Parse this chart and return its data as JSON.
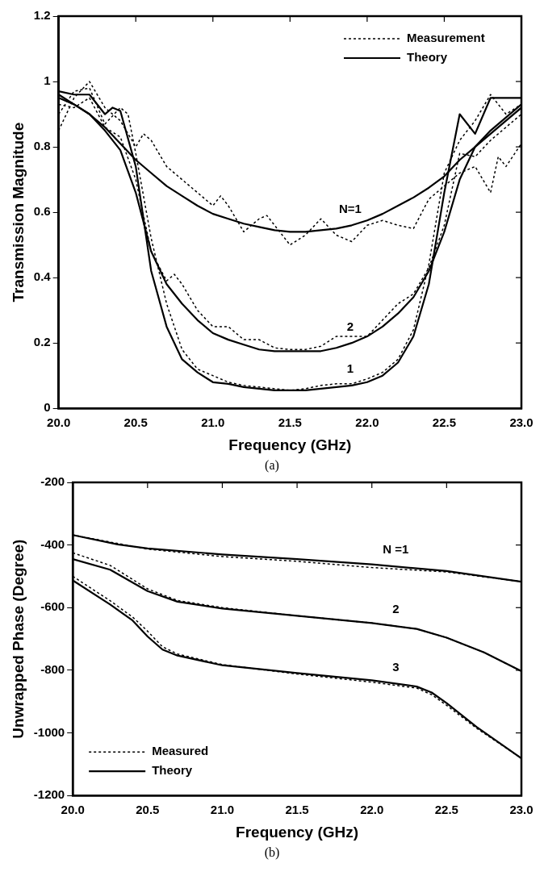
{
  "chart_data": [
    {
      "type": "line",
      "xlabel": "Frequency (GHz)",
      "ylabel": "Transmission Magnitude",
      "xlim": [
        20,
        23
      ],
      "ylim": [
        0,
        1.2
      ],
      "xticks": [
        {
          "value": 20,
          "label": "20.0"
        },
        {
          "value": 20.5,
          "label": "20.5"
        },
        {
          "value": 21,
          "label": "21.0"
        },
        {
          "value": 21.5,
          "label": "21.5"
        },
        {
          "value": 22,
          "label": "22.0"
        },
        {
          "value": 22.5,
          "label": "22.5"
        },
        {
          "value": 23,
          "label": "23.0"
        }
      ],
      "yticks": [
        0,
        0.2,
        0.4,
        0.6,
        0.8,
        1,
        1.2
      ],
      "grid": false,
      "legend": "top right",
      "marker": "none",
      "annotations": [
        "N=1",
        "2",
        "1",
        "(a)"
      ],
      "series": [
        {
          "name": "Measurement",
          "color": "#000000",
          "line_style": "dotted",
          "x": [
            20,
            20.1,
            20.2,
            20.3,
            20.4,
            20.5,
            20.55,
            20.6,
            20.7,
            20.8,
            20.9,
            21,
            21.05,
            21.1,
            21.2,
            21.3,
            21.35,
            21.4,
            21.5,
            21.6,
            21.7,
            21.8,
            21.9,
            22,
            22.1,
            22.2,
            22.3,
            22.4,
            22.5,
            22.6,
            22.7,
            22.8,
            22.85,
            22.9,
            23
          ],
          "values": [
            0.85,
            0.95,
            1.0,
            0.92,
            0.88,
            0.8,
            0.84,
            0.82,
            0.74,
            0.7,
            0.66,
            0.62,
            0.65,
            0.62,
            0.54,
            0.58,
            0.59,
            0.56,
            0.5,
            0.53,
            0.58,
            0.53,
            0.51,
            0.56,
            0.575,
            0.56,
            0.55,
            0.64,
            0.68,
            0.72,
            0.74,
            0.66,
            0.77,
            0.74,
            0.81
          ]
        },
        {
          "name": "Theory",
          "color": "#000000",
          "line_style": "solid",
          "x": [
            20,
            20.1,
            20.2,
            20.3,
            20.4,
            20.5,
            20.6,
            20.7,
            20.8,
            20.9,
            21,
            21.1,
            21.2,
            21.3,
            21.4,
            21.5,
            21.6,
            21.7,
            21.8,
            21.9,
            22,
            22.1,
            22.2,
            22.3,
            22.4,
            22.5,
            22.6,
            22.7,
            22.8,
            22.9,
            23
          ],
          "values": [
            0.95,
            0.93,
            0.9,
            0.86,
            0.81,
            0.76,
            0.72,
            0.68,
            0.65,
            0.62,
            0.595,
            0.58,
            0.565,
            0.555,
            0.545,
            0.54,
            0.54,
            0.545,
            0.55,
            0.56,
            0.575,
            0.595,
            0.62,
            0.645,
            0.675,
            0.71,
            0.76,
            0.8,
            0.84,
            0.88,
            0.92
          ]
        },
        {
          "color": "#000000",
          "line_style": "dotted",
          "x": [
            20,
            20.1,
            20.2,
            20.3,
            20.4,
            20.5,
            20.6,
            20.7,
            20.75,
            20.8,
            20.9,
            21,
            21.1,
            21.2,
            21.3,
            21.4,
            21.5,
            21.6,
            21.7,
            21.8,
            21.9,
            22,
            22.1,
            22.2,
            22.3,
            22.4,
            22.5,
            22.6,
            22.7,
            22.8,
            22.9,
            23
          ],
          "values": [
            0.93,
            0.92,
            0.95,
            0.86,
            0.83,
            0.7,
            0.48,
            0.39,
            0.41,
            0.38,
            0.3,
            0.25,
            0.25,
            0.21,
            0.21,
            0.185,
            0.18,
            0.18,
            0.19,
            0.22,
            0.22,
            0.22,
            0.27,
            0.32,
            0.35,
            0.43,
            0.56,
            0.78,
            0.77,
            0.82,
            0.86,
            0.9
          ]
        },
        {
          "color": "#000000",
          "line_style": "solid",
          "x": [
            20,
            20.1,
            20.2,
            20.3,
            20.4,
            20.5,
            20.6,
            20.7,
            20.8,
            20.9,
            21,
            21.1,
            21.2,
            21.3,
            21.4,
            21.5,
            21.6,
            21.7,
            21.8,
            21.9,
            22,
            22.1,
            22.2,
            22.3,
            22.4,
            22.5,
            22.6,
            22.7,
            22.8,
            22.9,
            23
          ],
          "values": [
            0.96,
            0.93,
            0.9,
            0.85,
            0.79,
            0.66,
            0.48,
            0.38,
            0.32,
            0.27,
            0.23,
            0.21,
            0.195,
            0.18,
            0.175,
            0.175,
            0.175,
            0.175,
            0.185,
            0.2,
            0.22,
            0.25,
            0.29,
            0.34,
            0.42,
            0.54,
            0.7,
            0.8,
            0.85,
            0.89,
            0.93
          ]
        },
        {
          "color": "#000000",
          "line_style": "dotted",
          "x": [
            20,
            20.1,
            20.2,
            20.3,
            20.4,
            20.45,
            20.5,
            20.6,
            20.7,
            20.8,
            20.9,
            21,
            21.1,
            21.2,
            21.3,
            21.4,
            21.5,
            21.6,
            21.7,
            21.8,
            21.9,
            22,
            22.1,
            22.2,
            22.3,
            22.4,
            22.5,
            22.6,
            22.7,
            22.8,
            22.9,
            23
          ],
          "values": [
            0.9,
            0.97,
            0.98,
            0.87,
            0.92,
            0.9,
            0.78,
            0.52,
            0.32,
            0.18,
            0.12,
            0.1,
            0.08,
            0.07,
            0.065,
            0.06,
            0.055,
            0.06,
            0.07,
            0.075,
            0.075,
            0.09,
            0.11,
            0.15,
            0.24,
            0.44,
            0.72,
            0.82,
            0.88,
            0.96,
            0.9,
            0.93
          ]
        },
        {
          "color": "#000000",
          "line_style": "solid",
          "x": [
            20,
            20.1,
            20.2,
            20.3,
            20.35,
            20.4,
            20.5,
            20.6,
            20.7,
            20.8,
            20.9,
            21,
            21.1,
            21.2,
            21.3,
            21.4,
            21.5,
            21.6,
            21.7,
            21.8,
            21.9,
            22,
            22.1,
            22.2,
            22.3,
            22.4,
            22.5,
            22.6,
            22.7,
            22.8,
            22.9,
            23
          ],
          "values": [
            0.97,
            0.96,
            0.96,
            0.9,
            0.92,
            0.91,
            0.74,
            0.42,
            0.25,
            0.15,
            0.11,
            0.08,
            0.075,
            0.065,
            0.06,
            0.055,
            0.055,
            0.055,
            0.06,
            0.065,
            0.07,
            0.08,
            0.1,
            0.14,
            0.22,
            0.38,
            0.66,
            0.9,
            0.84,
            0.95,
            0.95,
            0.95
          ]
        }
      ]
    },
    {
      "type": "line",
      "xlabel": "Frequency (GHz)",
      "ylabel": "Unwrapped Phase (Degree)",
      "xlim": [
        20,
        23
      ],
      "ylim": [
        -1200,
        -200
      ],
      "xticks": [
        {
          "value": 20,
          "label": "20.0"
        },
        {
          "value": 20.5,
          "label": "20.5"
        },
        {
          "value": 21,
          "label": "21.0"
        },
        {
          "value": 21.5,
          "label": "21.5"
        },
        {
          "value": 22,
          "label": "22.0"
        },
        {
          "value": 22.5,
          "label": "22.5"
        },
        {
          "value": 23,
          "label": "23.0"
        }
      ],
      "yticks": [
        -1200,
        -1000,
        -800,
        -600,
        -400,
        -200
      ],
      "grid": false,
      "legend": "bottom left",
      "marker": "none",
      "annotations": [
        "N =1",
        "2",
        "3",
        "(b)"
      ],
      "series": [
        {
          "name": "Measured",
          "color": "#000000",
          "line_style": "dotted",
          "x": [
            20,
            20.5,
            21,
            21.5,
            22,
            22.5,
            23
          ],
          "values": [
            -368,
            -413,
            -437,
            -452,
            -472,
            -486,
            -517
          ]
        },
        {
          "name": "Theory",
          "color": "#000000",
          "line_style": "solid",
          "x": [
            20,
            20.3,
            20.5,
            21,
            21.5,
            22,
            22.5,
            23
          ],
          "values": [
            -368,
            -398,
            -411,
            -430,
            -445,
            -462,
            -483,
            -517
          ]
        },
        {
          "color": "#000000",
          "line_style": "dotted",
          "x": [
            20,
            20.25,
            20.5,
            20.7,
            21,
            21.5,
            22,
            22.3,
            22.5,
            22.75,
            23
          ],
          "values": [
            -425,
            -465,
            -540,
            -577,
            -600,
            -626,
            -649,
            -668,
            -696,
            -743,
            -803
          ]
        },
        {
          "color": "#000000",
          "line_style": "solid",
          "x": [
            20,
            20.25,
            20.5,
            20.7,
            21,
            21.5,
            22,
            22.3,
            22.5,
            22.75,
            23
          ],
          "values": [
            -445,
            -479,
            -547,
            -581,
            -603,
            -626,
            -649,
            -668,
            -696,
            -743,
            -803
          ]
        },
        {
          "color": "#000000",
          "line_style": "dotted",
          "x": [
            20,
            20.25,
            20.4,
            20.5,
            20.6,
            20.7,
            21,
            21.5,
            22,
            22.3,
            22.4,
            22.5,
            22.7,
            23
          ],
          "values": [
            -500,
            -578,
            -630,
            -675,
            -725,
            -748,
            -782,
            -812,
            -838,
            -857,
            -878,
            -912,
            -985,
            -1081
          ]
        },
        {
          "color": "#000000",
          "line_style": "solid",
          "x": [
            20,
            20.25,
            20.4,
            20.5,
            20.6,
            20.7,
            21,
            21.5,
            22,
            22.3,
            22.4,
            22.5,
            22.7,
            23
          ],
          "values": [
            -513,
            -590,
            -641,
            -692,
            -734,
            -753,
            -784,
            -809,
            -832,
            -852,
            -871,
            -905,
            -981,
            -1081
          ]
        }
      ]
    }
  ]
}
